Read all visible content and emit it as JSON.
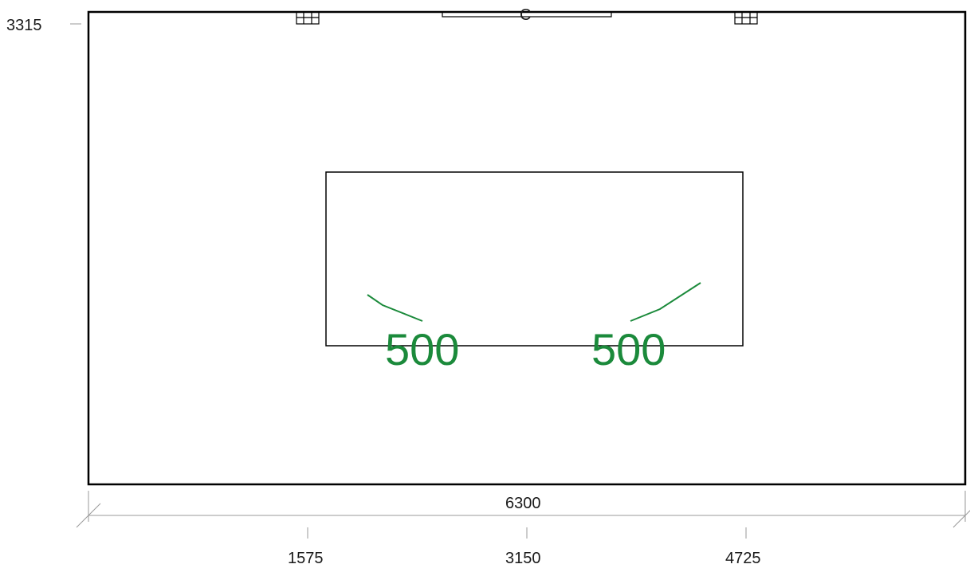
{
  "plan": {
    "vertical_dimension": "3315",
    "overall_width_label": "6300",
    "axis_labels": [
      "1575",
      "3150",
      "4725"
    ],
    "door_letter": "C",
    "zone_values": [
      "500",
      "500"
    ],
    "colors": {
      "outline": "#000000",
      "dimension_line": "#999999",
      "zone_accent": "#1b8a3b"
    }
  }
}
